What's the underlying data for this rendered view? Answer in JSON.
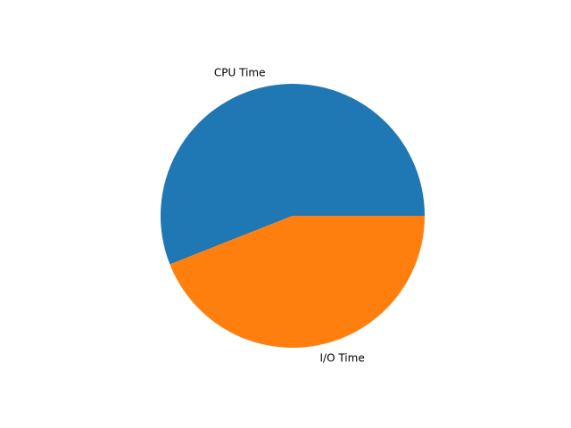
{
  "chart_data": {
    "type": "pie",
    "title": "",
    "slices": [
      {
        "label": "CPU Time",
        "value": 56,
        "color": "#1f77b4"
      },
      {
        "label": "I/O Time",
        "value": 44,
        "color": "#ff7f0e"
      }
    ],
    "start_angle_deg": 0,
    "direction": "counterclockwise",
    "legend": "none"
  }
}
